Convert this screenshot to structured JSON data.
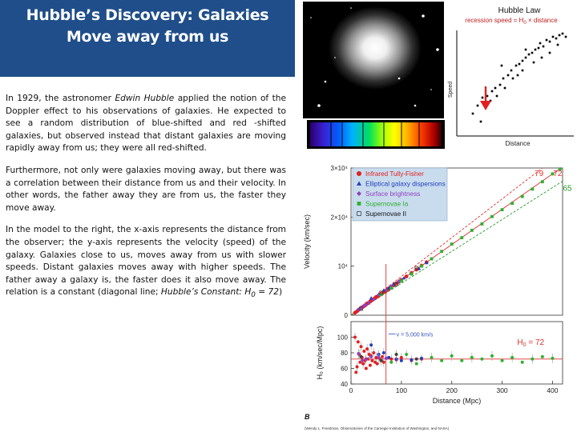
{
  "slide": {
    "title_line1": "Hubble’s Discovery: Galaxies",
    "title_line2": "Move away from us",
    "p1": {
      "a": "In 1929, the astronomer ",
      "b": "Edwin Hubble",
      "c": " applied the notion of the Doppler effect to his observations of galaxies. He expected to see a random distribution of blue-shifted and red -shifted galaxies, but observed instead that distant galaxies are moving rapidly away from us; they were all red-shifted."
    },
    "p2": "Furthermore, not only were galaxies moving away, but there was a correlation between their distance from us and their velocity. In other words, the father away they are from us, the faster they move away.",
    "p3": {
      "a": "In the model to the right, the x-axis represents the distance from the observer; the y-axis represents the velocity (speed) of the galaxy. Galaxies close to us, moves away from us with slower speeds. Distant galaxies moves away with higher speeds. The father away a galaxy is, the faster does it also move away. The relation is a constant (diagonal line; ",
      "b": "Hubble’s Constant: H",
      "sub": "0",
      "c": " = 72",
      "d": ")"
    }
  },
  "inset": {
    "title": "Hubble Law",
    "formula": "recession speed = H",
    "formula_sub": "0",
    "formula_tail": " × distance",
    "ylabel": "Speed",
    "xlabel": "Distance"
  },
  "chart_data": [
    {
      "type": "scatter",
      "panel": "top",
      "ylabel": "Velocity (km/sec)",
      "y_ticks": [
        "3×10⁴",
        "2×10⁴",
        "10⁴",
        "0"
      ],
      "xlim": [
        0,
        420
      ],
      "ylim": [
        0,
        30000
      ],
      "fit_lines": [
        {
          "label": "79",
          "slope": 79,
          "color": "#e03030"
        },
        {
          "label": "72",
          "slope": 72,
          "color": "#e03030"
        },
        {
          "label": "65",
          "slope": 65,
          "color": "#2a9a2a"
        }
      ],
      "series": [
        {
          "name": "Infrared Tully-Fisher",
          "color": "#e02020",
          "marker": "circle",
          "points": [
            [
              8,
              500
            ],
            [
              12,
              800
            ],
            [
              15,
              1100
            ],
            [
              18,
              1300
            ],
            [
              20,
              1500
            ],
            [
              22,
              1600
            ],
            [
              25,
              1800
            ],
            [
              28,
              2000
            ],
            [
              30,
              2200
            ],
            [
              32,
              2400
            ],
            [
              35,
              2500
            ],
            [
              38,
              2800
            ],
            [
              40,
              3000
            ],
            [
              42,
              3100
            ],
            [
              45,
              3300
            ],
            [
              48,
              3500
            ],
            [
              50,
              3700
            ],
            [
              52,
              3800
            ],
            [
              55,
              4000
            ],
            [
              58,
              4200
            ],
            [
              60,
              4400
            ],
            [
              62,
              4500
            ],
            [
              65,
              4700
            ],
            [
              68,
              4900
            ],
            [
              70,
              5000
            ],
            [
              72,
              5200
            ],
            [
              75,
              5400
            ],
            [
              80,
              5800
            ],
            [
              85,
              6100
            ],
            [
              90,
              6500
            ],
            [
              95,
              6800
            ],
            [
              100,
              7200
            ],
            [
              110,
              7900
            ],
            [
              120,
              8600
            ],
            [
              130,
              9300
            ],
            [
              140,
              10100
            ],
            [
              150,
              10800
            ]
          ]
        },
        {
          "name": "Elliptical galaxy dispersions",
          "color": "#2040c0",
          "marker": "triangle",
          "points": [
            [
              40,
              3500
            ],
            [
              55,
              4300
            ],
            [
              65,
              5100
            ],
            [
              75,
              5600
            ],
            [
              85,
              6400
            ],
            [
              95,
              7000
            ],
            [
              105,
              7600
            ],
            [
              120,
              8500
            ],
            [
              135,
              9500
            ],
            [
              150,
              10700
            ]
          ]
        },
        {
          "name": "Surface brightness",
          "color": "#9040c0",
          "marker": "diamond",
          "points": [
            [
              15,
              1200
            ],
            [
              20,
              1400
            ],
            [
              25,
              1900
            ],
            [
              30,
              2100
            ],
            [
              35,
              2600
            ],
            [
              45,
              3200
            ],
            [
              55,
              4100
            ],
            [
              70,
              5100
            ],
            [
              80,
              5900
            ],
            [
              95,
              6900
            ]
          ]
        },
        {
          "name": "Supernovae Ia",
          "color": "#30b030",
          "marker": "square",
          "points": [
            [
              60,
              4200
            ],
            [
              80,
              5500
            ],
            [
              100,
              7000
            ],
            [
              120,
              8400
            ],
            [
              140,
              10000
            ],
            [
              160,
              11500
            ],
            [
              180,
              13000
            ],
            [
              200,
              14500
            ],
            [
              220,
              15800
            ],
            [
              240,
              17300
            ],
            [
              260,
              18600
            ],
            [
              280,
              20100
            ],
            [
              300,
              21500
            ],
            [
              320,
              22800
            ],
            [
              340,
              24200
            ],
            [
              360,
              25700
            ],
            [
              380,
              27200
            ],
            [
              400,
              28800
            ],
            [
              415,
              29800
            ]
          ]
        },
        {
          "name": "Supernovae II",
          "color": "#404040",
          "marker": "square-open",
          "points": [
            [
              20,
              1300
            ],
            [
              60,
              4600
            ],
            [
              90,
              6300
            ],
            [
              130,
              9600
            ]
          ]
        }
      ]
    },
    {
      "type": "scatter",
      "panel": "bottom",
      "ylabel": "H₀ (km/sec/Mpc)",
      "xlabel": "Distance (Mpc)",
      "xlim": [
        0,
        420
      ],
      "ylim": [
        40,
        120
      ],
      "x_ticks": [
        0,
        100,
        200,
        300,
        400
      ],
      "y_ticks": [
        100,
        80,
        60,
        40
      ],
      "reference": {
        "value": 72,
        "label": "H",
        "label_sub": "0",
        "label_tail": " = 72"
      },
      "annotation": "v = 5,000 km/s",
      "series": [
        {
          "name": "Infrared Tully-Fisher",
          "color": "#e02020",
          "points": [
            [
              8,
              100
            ],
            [
              10,
              55
            ],
            [
              12,
              62
            ],
            [
              14,
              94
            ],
            [
              16,
              78
            ],
            [
              18,
              68
            ],
            [
              20,
              88
            ],
            [
              22,
              74
            ],
            [
              24,
              66
            ],
            [
              26,
              82
            ],
            [
              28,
              70
            ],
            [
              30,
              60
            ],
            [
              32,
              85
            ],
            [
              34,
              72
            ],
            [
              36,
              78
            ],
            [
              38,
              64
            ],
            [
              40,
              76
            ],
            [
              42,
              70
            ],
            [
              45,
              80
            ],
            [
              48,
              68
            ],
            [
              50,
              74
            ],
            [
              52,
              66
            ],
            [
              55,
              78
            ],
            [
              58,
              72
            ],
            [
              60,
              70
            ],
            [
              62,
              75
            ],
            [
              65,
              68
            ],
            [
              70,
              73
            ],
            [
              80,
              72
            ],
            [
              90,
              71
            ],
            [
              100,
              74
            ],
            [
              120,
              70
            ],
            [
              140,
              72
            ]
          ]
        },
        {
          "name": "Elliptical galaxy dispersions",
          "color": "#2040c0",
          "points": [
            [
              40,
              90
            ],
            [
              55,
              78
            ],
            [
              65,
              80
            ],
            [
              75,
              74
            ],
            [
              90,
              72
            ],
            [
              100,
              70
            ],
            [
              120,
              71
            ],
            [
              140,
              73
            ]
          ]
        },
        {
          "name": "Surface brightness",
          "color": "#9040c0",
          "points": [
            [
              15,
              79
            ],
            [
              22,
              70
            ],
            [
              30,
              72
            ],
            [
              40,
              75
            ],
            [
              55,
              74
            ],
            [
              70,
              73
            ]
          ]
        },
        {
          "name": "Supernovae Ia",
          "color": "#30b030",
          "points": [
            [
              60,
              70
            ],
            [
              80,
              68
            ],
            [
              110,
              78
            ],
            [
              130,
              66
            ],
            [
              160,
              74
            ],
            [
              180,
              70
            ],
            [
              200,
              76
            ],
            [
              220,
              70
            ],
            [
              240,
              74
            ],
            [
              260,
              72
            ],
            [
              280,
              76
            ],
            [
              300,
              70
            ],
            [
              320,
              74
            ],
            [
              340,
              68
            ],
            [
              360,
              72
            ],
            [
              380,
              75
            ],
            [
              400,
              73
            ]
          ]
        },
        {
          "name": "Supernovae II",
          "color": "#404040",
          "points": [
            [
              20,
              75
            ],
            [
              60,
              70
            ],
            [
              90,
              78
            ],
            [
              130,
              72
            ]
          ]
        }
      ],
      "panel_label": "B",
      "credit": "(Wendy L. Freedman, Observatories of the Carnegie Institution of Washington, and NASA)"
    }
  ],
  "colors": {
    "title_bar": "#1f4e8a",
    "text": "#111111",
    "fit_red": "#e03030",
    "fit_green": "#2a9a2a",
    "legend_box": "#c9dcee"
  }
}
